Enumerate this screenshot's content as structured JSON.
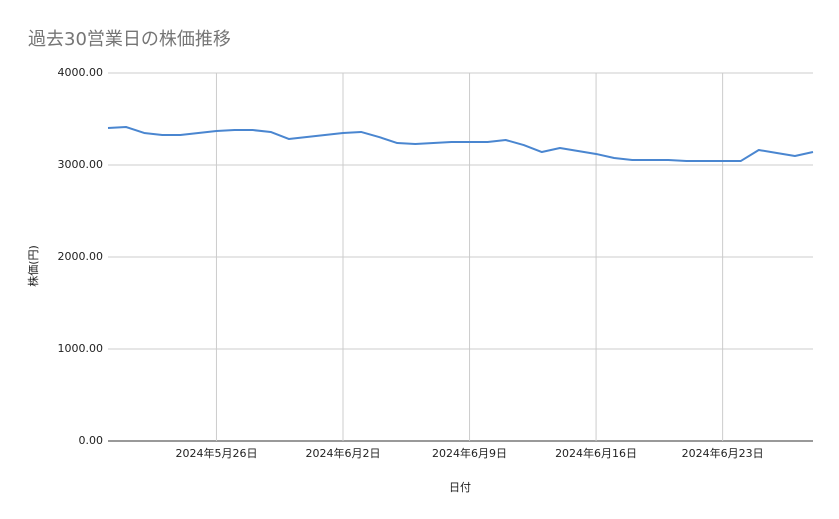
{
  "chart_data": {
    "type": "line",
    "title": "過去30営業日の株価推移",
    "x_label": "日付",
    "y_label": "株価(円)",
    "x": [
      "2024-05-20",
      "2024-05-21",
      "2024-05-22",
      "2024-05-23",
      "2024-05-24",
      "2024-05-25",
      "2024-05-26",
      "2024-05-27",
      "2024-05-28",
      "2024-05-29",
      "2024-05-30",
      "2024-05-31",
      "2024-06-01",
      "2024-06-02",
      "2024-06-03",
      "2024-06-04",
      "2024-06-05",
      "2024-06-06",
      "2024-06-07",
      "2024-06-08",
      "2024-06-09",
      "2024-06-10",
      "2024-06-11",
      "2024-06-12",
      "2024-06-13",
      "2024-06-14",
      "2024-06-15",
      "2024-06-16",
      "2024-06-17",
      "2024-06-18",
      "2024-06-19",
      "2024-06-20",
      "2024-06-21",
      "2024-06-22",
      "2024-06-23",
      "2024-06-24",
      "2024-06-25",
      "2024-06-26",
      "2024-06-27",
      "2024-06-28"
    ],
    "series": [
      {
        "name": "株価",
        "color": "#4a86d0",
        "values": [
          3402,
          3413,
          3348,
          3326,
          3326,
          3348,
          3370,
          3380,
          3380,
          3359,
          3283,
          3304,
          3326,
          3348,
          3359,
          3304,
          3239,
          3228,
          3239,
          3250,
          3250,
          3250,
          3272,
          3217,
          3141,
          3185,
          3152,
          3120,
          3076,
          3054,
          3054,
          3054,
          3043,
          3043,
          3043,
          3043,
          3163,
          3130,
          3098,
          3141
        ]
      }
    ],
    "xlim": [
      "2024-05-20",
      "2024-06-28"
    ],
    "xticks": [
      {
        "value": "2024-05-26",
        "label": "2024年5月26日"
      },
      {
        "value": "2024-06-02",
        "label": "2024年6月2日"
      },
      {
        "value": "2024-06-09",
        "label": "2024年6月9日"
      },
      {
        "value": "2024-06-16",
        "label": "2024年6月16日"
      },
      {
        "value": "2024-06-23",
        "label": "2024年6月23日"
      }
    ],
    "ylim": [
      0,
      4000
    ],
    "yticks": [
      {
        "value": 0,
        "label": "0.00"
      },
      {
        "value": 1000,
        "label": "1000.00"
      },
      {
        "value": 2000,
        "label": "2000.00"
      },
      {
        "value": 3000,
        "label": "3000.00"
      },
      {
        "value": 4000,
        "label": "4000.00"
      }
    ],
    "grid": true
  }
}
